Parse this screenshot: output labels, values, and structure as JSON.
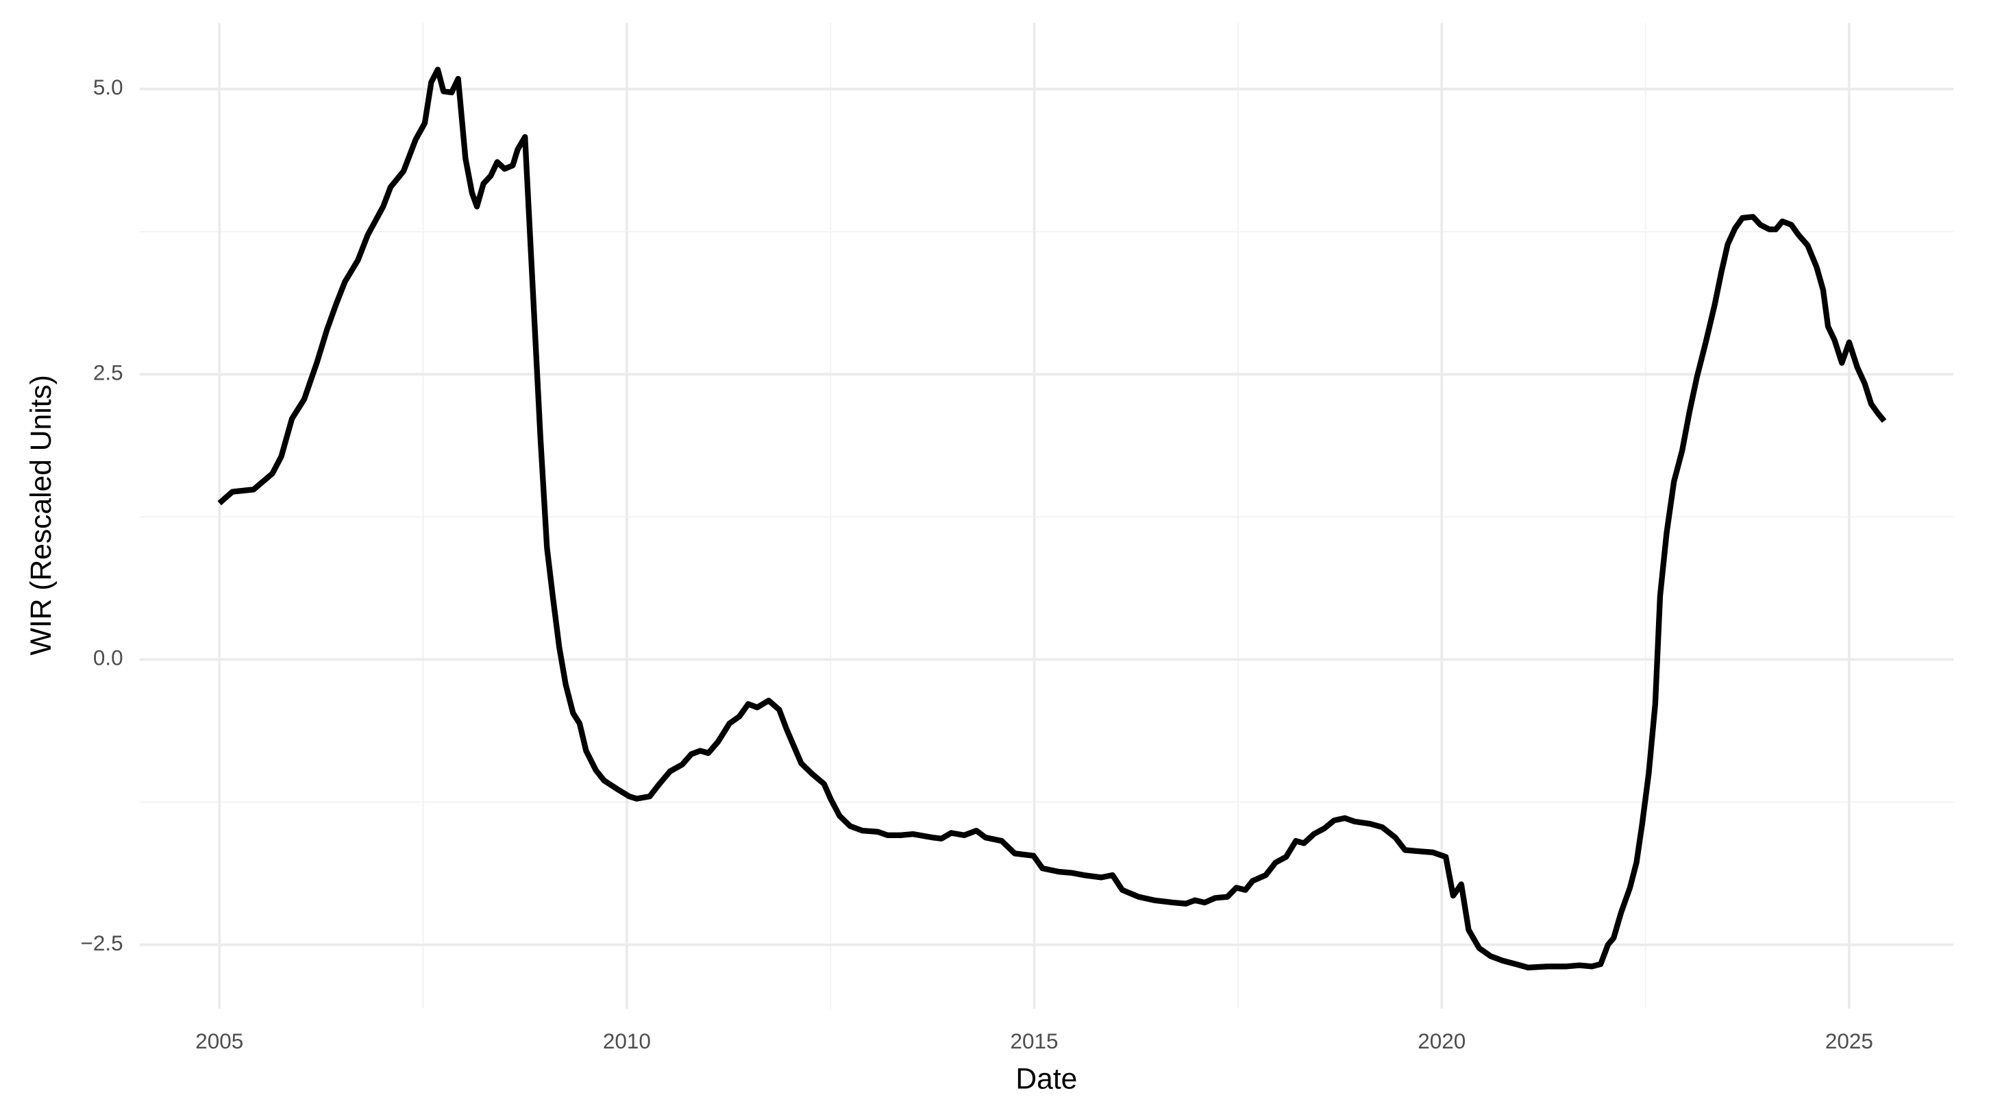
{
  "chart_data": {
    "type": "line",
    "x_label": "Date",
    "y_label": "WIR (Rescaled Units)",
    "x": [
      2005.0,
      2005.16,
      2005.42,
      2005.65,
      2005.76,
      2005.89,
      2006.04,
      2006.2,
      2006.32,
      2006.43,
      2006.54,
      2006.7,
      2006.82,
      2007.01,
      2007.1,
      2007.26,
      2007.41,
      2007.52,
      2007.6,
      2007.68,
      2007.75,
      2007.85,
      2007.93,
      2008.02,
      2008.1,
      2008.16,
      2008.24,
      2008.33,
      2008.41,
      2008.5,
      2008.6,
      2008.66,
      2008.75,
      2008.84,
      2008.94,
      2009.02,
      2009.09,
      2009.17,
      2009.25,
      2009.34,
      2009.42,
      2009.5,
      2009.62,
      2009.72,
      2009.87,
      2010.03,
      2010.12,
      2010.28,
      2010.4,
      2010.53,
      2010.68,
      2010.79,
      2010.9,
      2011.0,
      2011.12,
      2011.26,
      2011.38,
      2011.49,
      2011.6,
      2011.74,
      2011.87,
      2011.96,
      2012.05,
      2012.14,
      2012.27,
      2012.42,
      2012.5,
      2012.61,
      2012.74,
      2012.89,
      2013.08,
      2013.2,
      2013.36,
      2013.51,
      2013.75,
      2013.86,
      2013.98,
      2014.14,
      2014.29,
      2014.4,
      2014.6,
      2014.76,
      2014.99,
      2015.1,
      2015.3,
      2015.46,
      2015.61,
      2015.82,
      2015.96,
      2016.08,
      2016.28,
      2016.47,
      2016.7,
      2016.86,
      2016.97,
      2017.09,
      2017.22,
      2017.37,
      2017.48,
      2017.59,
      2017.68,
      2017.84,
      2017.96,
      2018.09,
      2018.21,
      2018.31,
      2018.43,
      2018.56,
      2018.68,
      2018.81,
      2018.93,
      2019.12,
      2019.27,
      2019.43,
      2019.55,
      2019.71,
      2019.89,
      2020.05,
      2020.14,
      2020.24,
      2020.33,
      2020.46,
      2020.6,
      2020.75,
      2020.91,
      2021.06,
      2021.3,
      2021.53,
      2021.69,
      2021.84,
      2021.95,
      2022.04,
      2022.11,
      2022.2,
      2022.31,
      2022.39,
      2022.46,
      2022.54,
      2022.62,
      2022.68,
      2022.76,
      2022.85,
      2022.95,
      2023.04,
      2023.13,
      2023.24,
      2023.35,
      2023.43,
      2023.51,
      2023.6,
      2023.69,
      2023.82,
      2023.91,
      2024.02,
      2024.1,
      2024.18,
      2024.29,
      2024.38,
      2024.49,
      2024.6,
      2024.68,
      2024.74,
      2024.82,
      2024.91,
      2025.0,
      2025.1,
      2025.19,
      2025.27,
      2025.35,
      2025.43
    ],
    "series": [
      {
        "name": "WIR",
        "color": "#000000",
        "values": [
          1.37,
          1.47,
          1.49,
          1.63,
          1.78,
          2.11,
          2.28,
          2.61,
          2.89,
          3.11,
          3.31,
          3.5,
          3.72,
          3.97,
          4.14,
          4.28,
          4.56,
          4.7,
          5.06,
          5.17,
          4.98,
          4.97,
          5.09,
          4.39,
          4.09,
          3.97,
          4.17,
          4.24,
          4.36,
          4.3,
          4.33,
          4.47,
          4.58,
          3.33,
          1.94,
          0.98,
          0.56,
          0.11,
          -0.22,
          -0.47,
          -0.56,
          -0.8,
          -0.97,
          -1.06,
          -1.13,
          -1.2,
          -1.22,
          -1.2,
          -1.09,
          -0.98,
          -0.92,
          -0.83,
          -0.8,
          -0.82,
          -0.72,
          -0.56,
          -0.5,
          -0.39,
          -0.42,
          -0.36,
          -0.44,
          -0.61,
          -0.76,
          -0.91,
          -1.0,
          -1.09,
          -1.22,
          -1.37,
          -1.46,
          -1.5,
          -1.51,
          -1.54,
          -1.54,
          -1.53,
          -1.56,
          -1.57,
          -1.52,
          -1.54,
          -1.5,
          -1.56,
          -1.59,
          -1.7,
          -1.72,
          -1.83,
          -1.86,
          -1.87,
          -1.89,
          -1.91,
          -1.89,
          -2.02,
          -2.08,
          -2.11,
          -2.13,
          -2.14,
          -2.11,
          -2.13,
          -2.09,
          -2.08,
          -2.0,
          -2.02,
          -1.94,
          -1.89,
          -1.78,
          -1.73,
          -1.59,
          -1.61,
          -1.53,
          -1.48,
          -1.41,
          -1.39,
          -1.42,
          -1.44,
          -1.47,
          -1.56,
          -1.67,
          -1.68,
          -1.69,
          -1.73,
          -2.07,
          -1.97,
          -2.37,
          -2.53,
          -2.6,
          -2.64,
          -2.67,
          -2.7,
          -2.69,
          -2.69,
          -2.68,
          -2.69,
          -2.67,
          -2.5,
          -2.44,
          -2.22,
          -2.0,
          -1.78,
          -1.44,
          -1.0,
          -0.39,
          0.56,
          1.11,
          1.56,
          1.83,
          2.17,
          2.47,
          2.78,
          3.11,
          3.39,
          3.64,
          3.78,
          3.87,
          3.88,
          3.81,
          3.77,
          3.77,
          3.84,
          3.81,
          3.72,
          3.63,
          3.44,
          3.24,
          2.92,
          2.8,
          2.6,
          2.78,
          2.56,
          2.42,
          2.24,
          2.16,
          2.09
        ]
      }
    ],
    "xlim": [
      2004.02,
      2026.28
    ],
    "ylim": [
      -3.06,
      5.58
    ],
    "xticks": [
      2005,
      2010,
      2015,
      2020,
      2025
    ],
    "yticks": [
      {
        "value": -2.5,
        "label": "−2.5"
      },
      {
        "value": 0,
        "label": "0.0"
      },
      2.5,
      {
        "value": 5,
        "label": "5.0"
      }
    ],
    "grid": true,
    "minor_grid": true
  }
}
